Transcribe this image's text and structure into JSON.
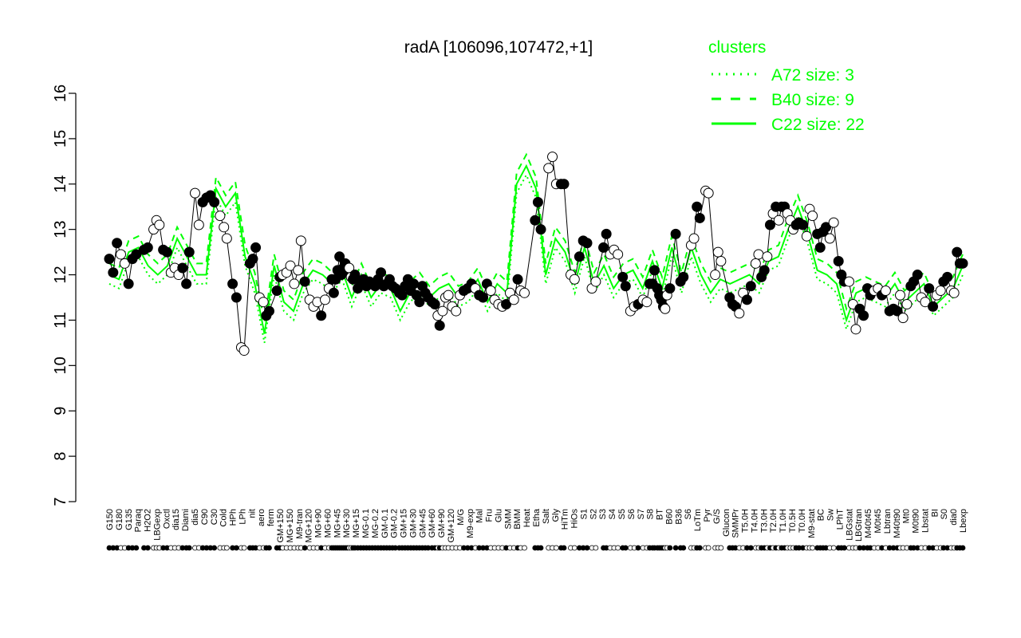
{
  "chart_data": {
    "type": "line",
    "title": "radA [106096,107472,+1]",
    "xlabel": "",
    "ylabel": "",
    "ylim": [
      7,
      16
    ],
    "yticks": [
      7,
      8,
      9,
      10,
      11,
      12,
      13,
      14,
      15,
      16
    ],
    "x_tick_labels": [
      "G150",
      "G180",
      "G135",
      "Paraq",
      "H2O2",
      "LBGexp",
      "Oxctl",
      "dia15",
      "Diami",
      "dia5",
      "C90",
      "C30",
      "Cold",
      "HPh",
      "LPh",
      "nit",
      "aero",
      "ferm",
      "GM+150",
      "MG+150",
      "M9-tran",
      "MG+120",
      "MG+90",
      "MG+60",
      "MG+45",
      "MG+30",
      "MG+15",
      "MG-0.1",
      "MG-0.2",
      "GM-0.1",
      "GM-0.2",
      "GM+15",
      "GM+30",
      "GM+45",
      "GM+60",
      "GM+90",
      "GM+120",
      "M/G",
      "M9-exp",
      "Mal",
      "Fru",
      "Glu",
      "SMM",
      "BMM",
      "Heat",
      "Etha",
      "Salt",
      "Gly",
      "HiTm",
      "HiOs",
      "S1",
      "S2",
      "S3",
      "S4",
      "S5",
      "S6",
      "S7",
      "S8",
      "BT",
      "B60",
      "B36",
      "S6",
      "LoTm",
      "Pyr",
      "G/S",
      "Glucon",
      "SMMPr",
      "T5.0H",
      "T4.0H",
      "T3.0H",
      "T2.0H",
      "T1.0H",
      "T0.5H",
      "T0.0H",
      "M9-stat",
      "BC",
      "Sw",
      "LPhT",
      "LBGstat",
      "LBGtran",
      "M40t45",
      "M0t45",
      "Lbtran",
      "M40t90",
      "Mt0",
      "M0t90",
      "Lbstat",
      "BI",
      "S0",
      "dia0",
      "Lbexp"
    ],
    "legend": {
      "title": "clusters",
      "placement": "top-right",
      "entries": [
        {
          "label": "A72 size: 3",
          "style": "dotted"
        },
        {
          "label": "B40 size: 9",
          "style": "dashed"
        },
        {
          "label": "C22 size: 22",
          "style": "solid"
        }
      ]
    },
    "series_color": "#00ff00",
    "point_colors": {
      "filled": "#000000",
      "open": "#ffffff"
    },
    "points": [
      [
        0,
        12.35,
        1
      ],
      [
        0.4,
        12.05,
        1
      ],
      [
        0.8,
        12.7,
        1
      ],
      [
        1.2,
        12.45,
        0
      ],
      [
        1.6,
        12.25,
        0
      ],
      [
        2.0,
        11.8,
        1
      ],
      [
        2.4,
        12.35,
        1
      ],
      [
        2.8,
        12.45,
        1
      ],
      [
        3.6,
        12.55,
        1
      ],
      [
        4.0,
        12.6,
        1
      ],
      [
        4.6,
        13.0,
        0
      ],
      [
        4.9,
        13.2,
        0
      ],
      [
        5.2,
        13.1,
        0
      ],
      [
        5.6,
        12.55,
        1
      ],
      [
        6.0,
        12.5,
        1
      ],
      [
        6.4,
        12.05,
        0
      ],
      [
        6.8,
        12.15,
        0
      ],
      [
        7.2,
        12.0,
        0
      ],
      [
        7.6,
        12.15,
        1
      ],
      [
        8.0,
        11.8,
        1
      ],
      [
        8.3,
        12.5,
        1
      ],
      [
        8.9,
        13.8,
        0
      ],
      [
        9.3,
        13.1,
        0
      ],
      [
        9.7,
        13.6,
        1
      ],
      [
        10.1,
        13.7,
        1
      ],
      [
        10.5,
        13.75,
        1
      ],
      [
        10.9,
        13.6,
        1
      ],
      [
        11.5,
        13.3,
        0
      ],
      [
        11.9,
        13.05,
        0
      ],
      [
        12.2,
        12.8,
        0
      ],
      [
        12.8,
        11.8,
        1
      ],
      [
        13.2,
        11.5,
        1
      ],
      [
        13.7,
        10.4,
        0
      ],
      [
        14.0,
        10.33,
        0
      ],
      [
        14.6,
        12.25,
        1
      ],
      [
        14.9,
        12.35,
        1
      ],
      [
        15.2,
        12.6,
        1
      ],
      [
        15.6,
        11.5,
        0
      ],
      [
        16.0,
        11.4,
        0
      ],
      [
        16.3,
        11.1,
        1
      ],
      [
        16.6,
        11.2,
        1
      ],
      [
        17.4,
        11.65,
        1
      ],
      [
        17.7,
        11.95,
        1
      ],
      [
        18.0,
        12.0,
        0
      ],
      [
        18.4,
        12.05,
        0
      ],
      [
        18.8,
        12.2,
        0
      ],
      [
        19.2,
        11.8,
        0
      ],
      [
        19.6,
        12.1,
        0
      ],
      [
        19.9,
        12.75,
        0
      ],
      [
        20.3,
        11.85,
        1
      ],
      [
        20.8,
        11.45,
        0
      ],
      [
        21.2,
        11.3,
        0
      ],
      [
        21.6,
        11.4,
        0
      ],
      [
        22.0,
        11.1,
        1
      ],
      [
        22.4,
        11.45,
        0
      ],
      [
        22.8,
        11.7,
        0
      ],
      [
        23.1,
        11.9,
        1
      ],
      [
        23.3,
        11.6,
        1
      ],
      [
        23.5,
        11.9,
        1
      ],
      [
        23.7,
        12.1,
        1
      ],
      [
        23.9,
        12.4,
        1
      ],
      [
        24.1,
        12.0,
        1
      ],
      [
        24.3,
        12.15,
        1
      ],
      [
        24.5,
        12.25,
        1
      ],
      [
        24.7,
        12.05,
        1
      ],
      [
        24.9,
        12.15,
        0
      ],
      [
        25.1,
        11.95,
        0
      ],
      [
        25.3,
        11.9,
        1
      ],
      [
        25.5,
        12.0,
        1
      ],
      [
        25.8,
        11.7,
        1
      ],
      [
        26.1,
        11.85,
        1
      ],
      [
        26.4,
        11.9,
        1
      ],
      [
        26.7,
        11.75,
        1
      ],
      [
        27.0,
        11.85,
        1
      ],
      [
        27.3,
        11.8,
        1
      ],
      [
        27.6,
        11.75,
        1
      ],
      [
        27.9,
        11.9,
        1
      ],
      [
        28.2,
        12.05,
        1
      ],
      [
        28.5,
        11.75,
        1
      ],
      [
        28.8,
        11.8,
        1
      ],
      [
        29.1,
        11.9,
        1
      ],
      [
        29.4,
        11.75,
        1
      ],
      [
        29.7,
        11.7,
        1
      ],
      [
        30.1,
        11.6,
        1
      ],
      [
        30.4,
        11.55,
        1
      ],
      [
        30.7,
        11.75,
        1
      ],
      [
        31.0,
        11.9,
        1
      ],
      [
        31.3,
        11.65,
        1
      ],
      [
        31.6,
        11.8,
        1
      ],
      [
        31.9,
        11.55,
        1
      ],
      [
        32.2,
        11.4,
        1
      ],
      [
        32.5,
        11.75,
        1
      ],
      [
        32.8,
        11.6,
        1
      ],
      [
        33.1,
        11.5,
        1
      ],
      [
        33.5,
        11.4,
        1
      ],
      [
        33.8,
        11.35,
        1
      ],
      [
        34.1,
        11.1,
        0
      ],
      [
        34.3,
        10.88,
        1
      ],
      [
        34.6,
        11.2,
        0
      ],
      [
        34.9,
        11.5,
        0
      ],
      [
        35.2,
        11.55,
        0
      ],
      [
        35.6,
        11.3,
        0
      ],
      [
        36.0,
        11.2,
        0
      ],
      [
        36.4,
        11.55,
        0
      ],
      [
        36.8,
        11.65,
        1
      ],
      [
        37.2,
        11.7,
        1
      ],
      [
        37.6,
        11.8,
        1
      ],
      [
        38.0,
        11.7,
        0
      ],
      [
        38.4,
        11.55,
        1
      ],
      [
        38.8,
        11.5,
        1
      ],
      [
        39.2,
        11.8,
        1
      ],
      [
        39.6,
        11.65,
        0
      ],
      [
        40.0,
        11.45,
        0
      ],
      [
        40.4,
        11.35,
        0
      ],
      [
        40.8,
        11.3,
        0
      ],
      [
        41.2,
        11.35,
        1
      ],
      [
        41.6,
        11.6,
        0
      ],
      [
        42.0,
        11.45,
        0
      ],
      [
        42.4,
        11.9,
        1
      ],
      [
        42.7,
        11.65,
        0
      ],
      [
        43.1,
        11.6,
        0
      ],
      [
        44.2,
        13.2,
        1
      ],
      [
        44.5,
        13.6,
        1
      ],
      [
        44.8,
        13.0,
        1
      ],
      [
        45.6,
        14.35,
        0
      ],
      [
        46.0,
        14.6,
        0
      ],
      [
        46.4,
        14.0,
        0
      ],
      [
        46.9,
        14.0,
        1
      ],
      [
        47.2,
        14.0,
        1
      ],
      [
        47.9,
        12.0,
        0
      ],
      [
        48.3,
        11.9,
        0
      ],
      [
        48.8,
        12.4,
        1
      ],
      [
        49.2,
        12.75,
        1
      ],
      [
        49.6,
        12.7,
        1
      ],
      [
        50.1,
        11.7,
        0
      ],
      [
        50.5,
        11.85,
        0
      ],
      [
        51.3,
        12.6,
        1
      ],
      [
        51.6,
        12.9,
        1
      ],
      [
        52.0,
        12.45,
        0
      ],
      [
        52.4,
        12.55,
        0
      ],
      [
        52.8,
        12.45,
        0
      ],
      [
        53.3,
        11.95,
        1
      ],
      [
        53.6,
        11.75,
        1
      ],
      [
        54.1,
        11.2,
        0
      ],
      [
        54.5,
        11.3,
        0
      ],
      [
        54.9,
        11.35,
        1
      ],
      [
        55.4,
        11.45,
        0
      ],
      [
        55.8,
        11.4,
        0
      ],
      [
        56.1,
        11.8,
        1
      ],
      [
        56.4,
        11.8,
        1
      ],
      [
        56.6,
        12.1,
        1
      ],
      [
        56.9,
        11.7,
        1
      ],
      [
        57.1,
        11.55,
        1
      ],
      [
        57.3,
        11.45,
        1
      ],
      [
        57.5,
        11.3,
        1
      ],
      [
        57.7,
        11.25,
        0
      ],
      [
        57.9,
        11.55,
        0
      ],
      [
        58.2,
        11.7,
        1
      ],
      [
        58.8,
        12.9,
        1
      ],
      [
        59.3,
        11.85,
        1
      ],
      [
        59.6,
        11.95,
        1
      ],
      [
        60.4,
        12.65,
        0
      ],
      [
        60.7,
        12.8,
        0
      ],
      [
        61.0,
        13.5,
        1
      ],
      [
        61.3,
        13.25,
        1
      ],
      [
        61.9,
        13.85,
        0
      ],
      [
        62.2,
        13.8,
        0
      ],
      [
        62.9,
        12.0,
        0
      ],
      [
        63.2,
        12.5,
        0
      ],
      [
        63.5,
        12.3,
        0
      ],
      [
        64.4,
        11.5,
        1
      ],
      [
        64.7,
        11.35,
        1
      ],
      [
        65.0,
        11.3,
        1
      ],
      [
        65.4,
        11.15,
        0
      ],
      [
        65.8,
        11.6,
        0
      ],
      [
        66.2,
        11.45,
        1
      ],
      [
        66.6,
        11.75,
        1
      ],
      [
        67.1,
        12.25,
        0
      ],
      [
        67.4,
        12.45,
        0
      ],
      [
        67.7,
        11.95,
        1
      ],
      [
        68.0,
        12.1,
        1
      ],
      [
        68.3,
        12.4,
        0
      ],
      [
        68.6,
        13.1,
        1
      ],
      [
        68.9,
        13.35,
        0
      ],
      [
        69.2,
        13.5,
        1
      ],
      [
        69.5,
        13.2,
        0
      ],
      [
        69.8,
        13.5,
        1
      ],
      [
        70.1,
        13.5,
        1
      ],
      [
        70.4,
        13.35,
        0
      ],
      [
        70.7,
        13.2,
        0
      ],
      [
        71.0,
        13.0,
        0
      ],
      [
        71.3,
        13.1,
        1
      ],
      [
        71.6,
        13.15,
        1
      ],
      [
        72.0,
        13.1,
        1
      ],
      [
        72.4,
        12.85,
        0
      ],
      [
        72.7,
        13.45,
        0
      ],
      [
        73.0,
        13.3,
        0
      ],
      [
        73.5,
        12.9,
        1
      ],
      [
        73.8,
        12.6,
        1
      ],
      [
        74.1,
        12.95,
        1
      ],
      [
        74.4,
        13.05,
        1
      ],
      [
        74.8,
        12.8,
        0
      ],
      [
        75.2,
        13.15,
        0
      ],
      [
        75.7,
        12.3,
        1
      ],
      [
        76.0,
        12.0,
        1
      ],
      [
        76.3,
        11.85,
        1
      ],
      [
        76.8,
        11.85,
        0
      ],
      [
        77.2,
        11.35,
        0
      ],
      [
        77.5,
        10.8,
        0
      ],
      [
        77.9,
        11.25,
        1
      ],
      [
        78.3,
        11.1,
        1
      ],
      [
        78.7,
        11.7,
        1
      ],
      [
        79.0,
        11.55,
        1
      ],
      [
        79.4,
        11.65,
        0
      ],
      [
        79.8,
        11.7,
        0
      ],
      [
        80.2,
        11.55,
        1
      ],
      [
        80.6,
        11.65,
        0
      ],
      [
        81.0,
        11.2,
        1
      ],
      [
        81.4,
        11.25,
        1
      ],
      [
        81.8,
        11.2,
        1
      ],
      [
        82.1,
        11.55,
        0
      ],
      [
        82.4,
        11.05,
        0
      ],
      [
        82.8,
        11.35,
        0
      ],
      [
        83.2,
        11.75,
        1
      ],
      [
        83.5,
        11.85,
        1
      ],
      [
        83.9,
        12.0,
        1
      ],
      [
        84.3,
        11.5,
        0
      ],
      [
        84.7,
        11.4,
        0
      ],
      [
        85.1,
        11.7,
        1
      ],
      [
        85.5,
        11.3,
        1
      ],
      [
        85.9,
        11.55,
        0
      ],
      [
        86.3,
        11.65,
        0
      ],
      [
        86.6,
        11.85,
        1
      ],
      [
        87.0,
        11.95,
        1
      ],
      [
        87.4,
        11.65,
        0
      ],
      [
        87.7,
        11.6,
        0
      ],
      [
        88.0,
        12.5,
        1
      ],
      [
        88.3,
        12.25,
        1
      ],
      [
        88.6,
        12.25,
        1
      ]
    ],
    "line_values": {
      "C22_solid": [
        12.0,
        11.9,
        12.5,
        12.6,
        12.2,
        12.0,
        12.2,
        12.8,
        12.4,
        12.0,
        12.0,
        13.9,
        13.5,
        13.8,
        12.4,
        11.8,
        10.7,
        12.2,
        11.4,
        11.2,
        11.8,
        12.1,
        12.0,
        11.8,
        12.1,
        11.5,
        12.0,
        11.5,
        11.8,
        11.7,
        11.2,
        11.6,
        11.8,
        11.5,
        11.7,
        11.8,
        11.5,
        11.6,
        11.9,
        11.4,
        11.8,
        11.6,
        14.0,
        14.4,
        13.9,
        12.0,
        12.8,
        12.5,
        11.8,
        12.6,
        11.8,
        12.2,
        11.7,
        12.0,
        12.1,
        11.7,
        12.3,
        11.7,
        12.6,
        11.8,
        12.6,
        12.0,
        11.6,
        11.9,
        11.8,
        11.9,
        12.0,
        11.8,
        12.3,
        12.4,
        13.0,
        13.5,
        12.9,
        12.1,
        12.0,
        11.8,
        11.0,
        11.6,
        11.7,
        11.6,
        11.5,
        11.8,
        11.4,
        11.6,
        11.8,
        11.3,
        11.5,
        11.7,
        12.2
      ]
    }
  }
}
